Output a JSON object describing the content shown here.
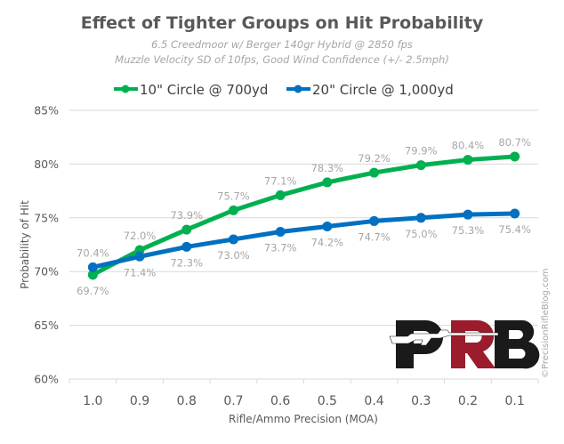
{
  "chart_data": {
    "type": "line",
    "title": "Effect of Tighter Groups on Hit Probability",
    "subtitle_lines": [
      "6.5 Creedmoor w/ Berger 140gr Hybrid @ 2850 fps",
      "Muzzle Velocity SD of 10fps, Good Wind Confidence (+/- 2.5mph)"
    ],
    "xlabel": "Rifle/Ammo Precision (MOA)",
    "ylabel": "Probability of Hit",
    "categories": [
      "1.0",
      "0.9",
      "0.8",
      "0.7",
      "0.6",
      "0.5",
      "0.4",
      "0.3",
      "0.2",
      "0.1"
    ],
    "yticks": [
      "60%",
      "65%",
      "70%",
      "75%",
      "80%",
      "85%"
    ],
    "ylim": [
      60,
      85
    ],
    "grid": true,
    "legend_position": "top",
    "series": [
      {
        "name": "10\" Circle @ 700yd",
        "color": "#00b050",
        "values": [
          69.7,
          72.0,
          73.9,
          75.7,
          77.1,
          78.3,
          79.2,
          79.9,
          80.4,
          80.7
        ],
        "labels": [
          "69.7%",
          "72.0%",
          "73.9%",
          "75.7%",
          "77.1%",
          "78.3%",
          "79.2%",
          "79.9%",
          "80.4%",
          "80.7%"
        ]
      },
      {
        "name": "20\" Circle @ 1,000yd",
        "color": "#0070c0",
        "values": [
          70.4,
          71.4,
          72.3,
          73.0,
          73.7,
          74.2,
          74.7,
          75.0,
          75.3,
          75.4
        ],
        "labels": [
          "70.4%",
          "71.4%",
          "72.3%",
          "73.0%",
          "73.7%",
          "74.2%",
          "74.7%",
          "75.0%",
          "75.3%",
          "75.4%"
        ]
      }
    ]
  },
  "watermark": {
    "logo_text": "PRB",
    "copyright": "©PrecisionRifleBlog.com",
    "colors": {
      "dark": "#1a1a1a",
      "red": "#9b1c2c"
    }
  }
}
